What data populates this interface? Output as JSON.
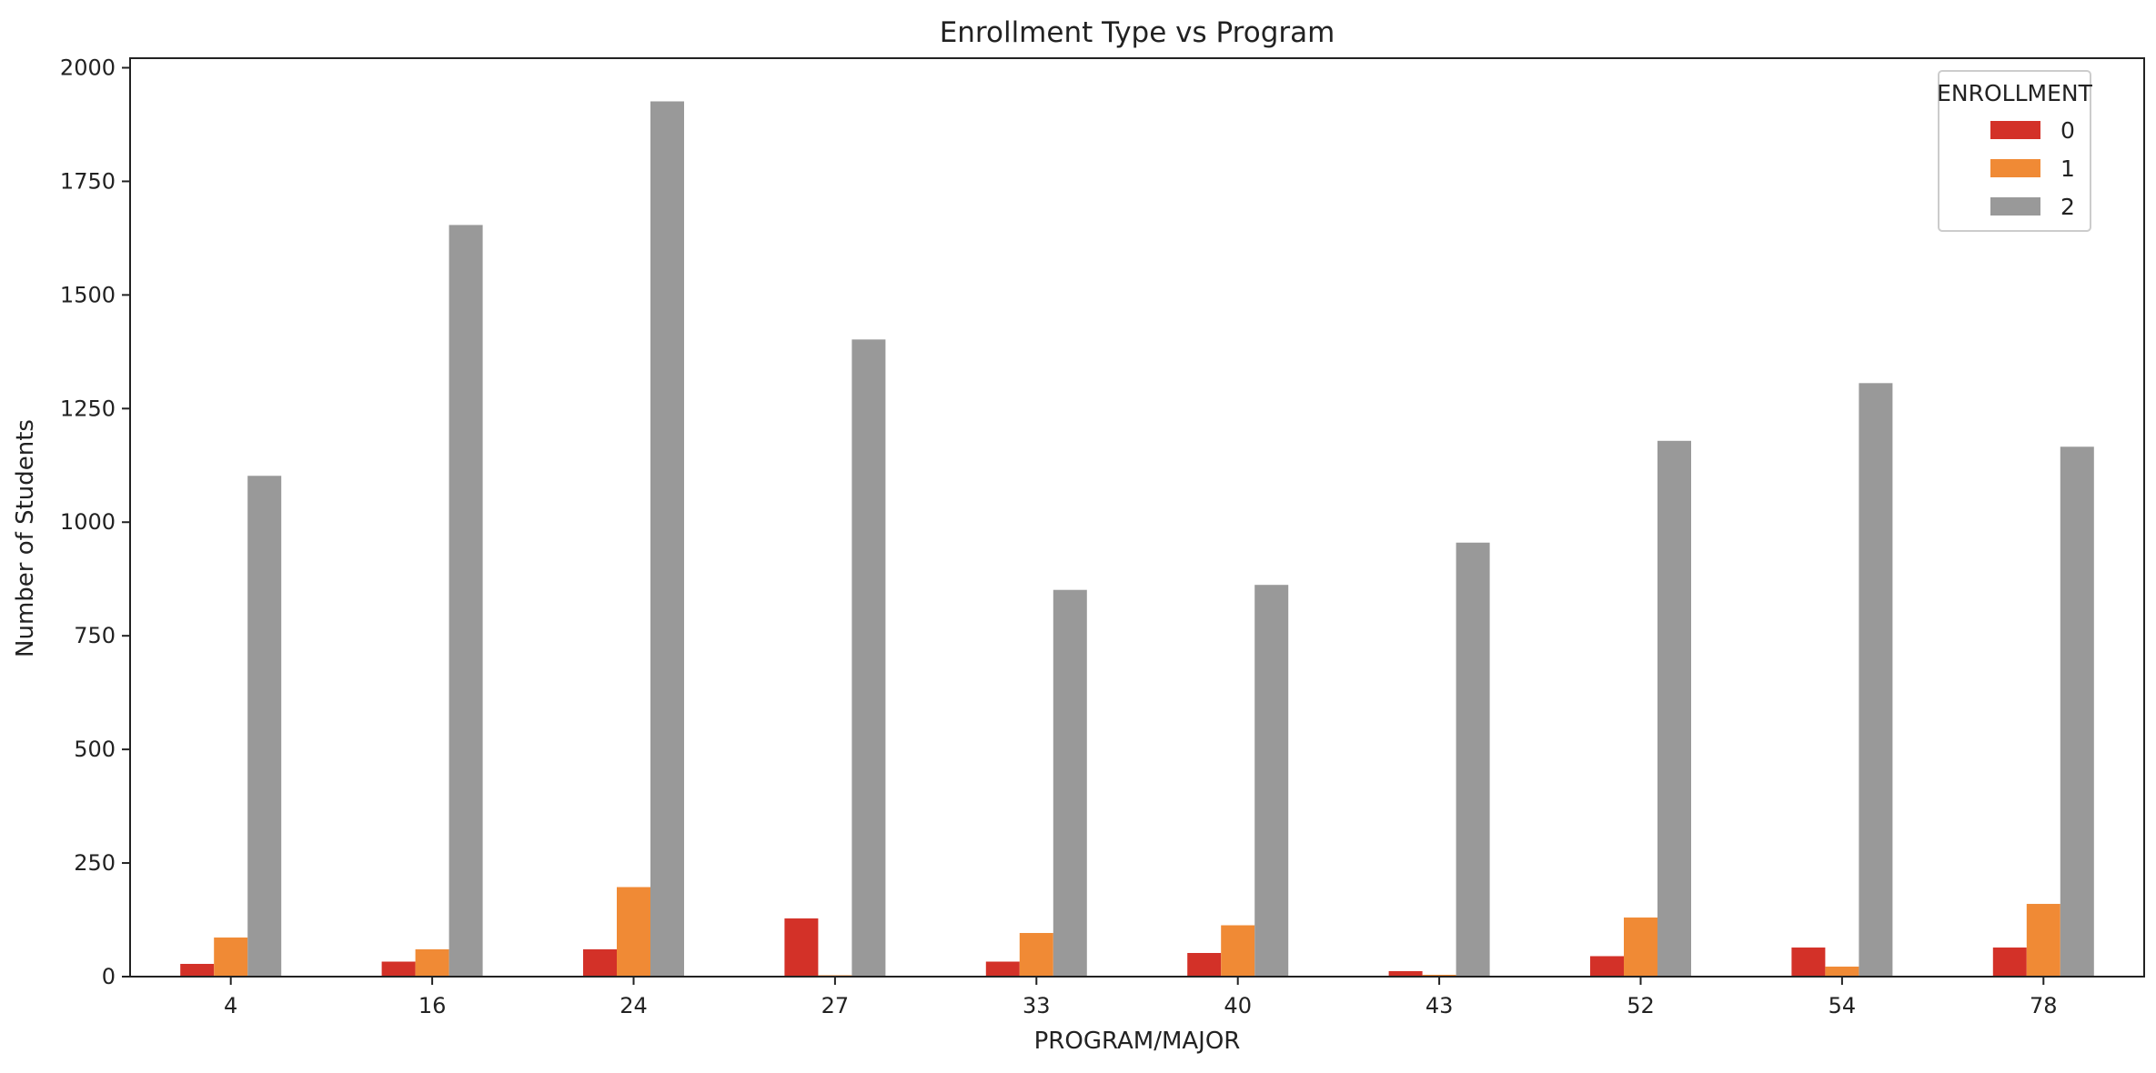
{
  "chart_data": {
    "type": "bar",
    "title": "Enrollment Type vs Program",
    "xlabel": "PROGRAM/MAJOR",
    "ylabel": "Number of Students",
    "categories": [
      "4",
      "16",
      "24",
      "27",
      "33",
      "40",
      "43",
      "52",
      "54",
      "78"
    ],
    "series": [
      {
        "name": "0",
        "color": "#d33128",
        "values": [
          28,
          33,
          60,
          128,
          33,
          52,
          12,
          45,
          64,
          64
        ]
      },
      {
        "name": "1",
        "color": "#f08a35",
        "values": [
          86,
          60,
          197,
          3,
          96,
          113,
          4,
          130,
          22,
          160
        ]
      },
      {
        "name": "2",
        "color": "#999999",
        "values": [
          1102,
          1654,
          1926,
          1402,
          851,
          862,
          955,
          1179,
          1306,
          1166
        ]
      }
    ],
    "yticks": [
      0,
      250,
      500,
      750,
      1000,
      1250,
      1500,
      1750,
      2000
    ],
    "ylim": [
      0,
      2021
    ],
    "legend": {
      "title": "ENROLLMENT",
      "position": "top-right"
    },
    "grid": false
  }
}
